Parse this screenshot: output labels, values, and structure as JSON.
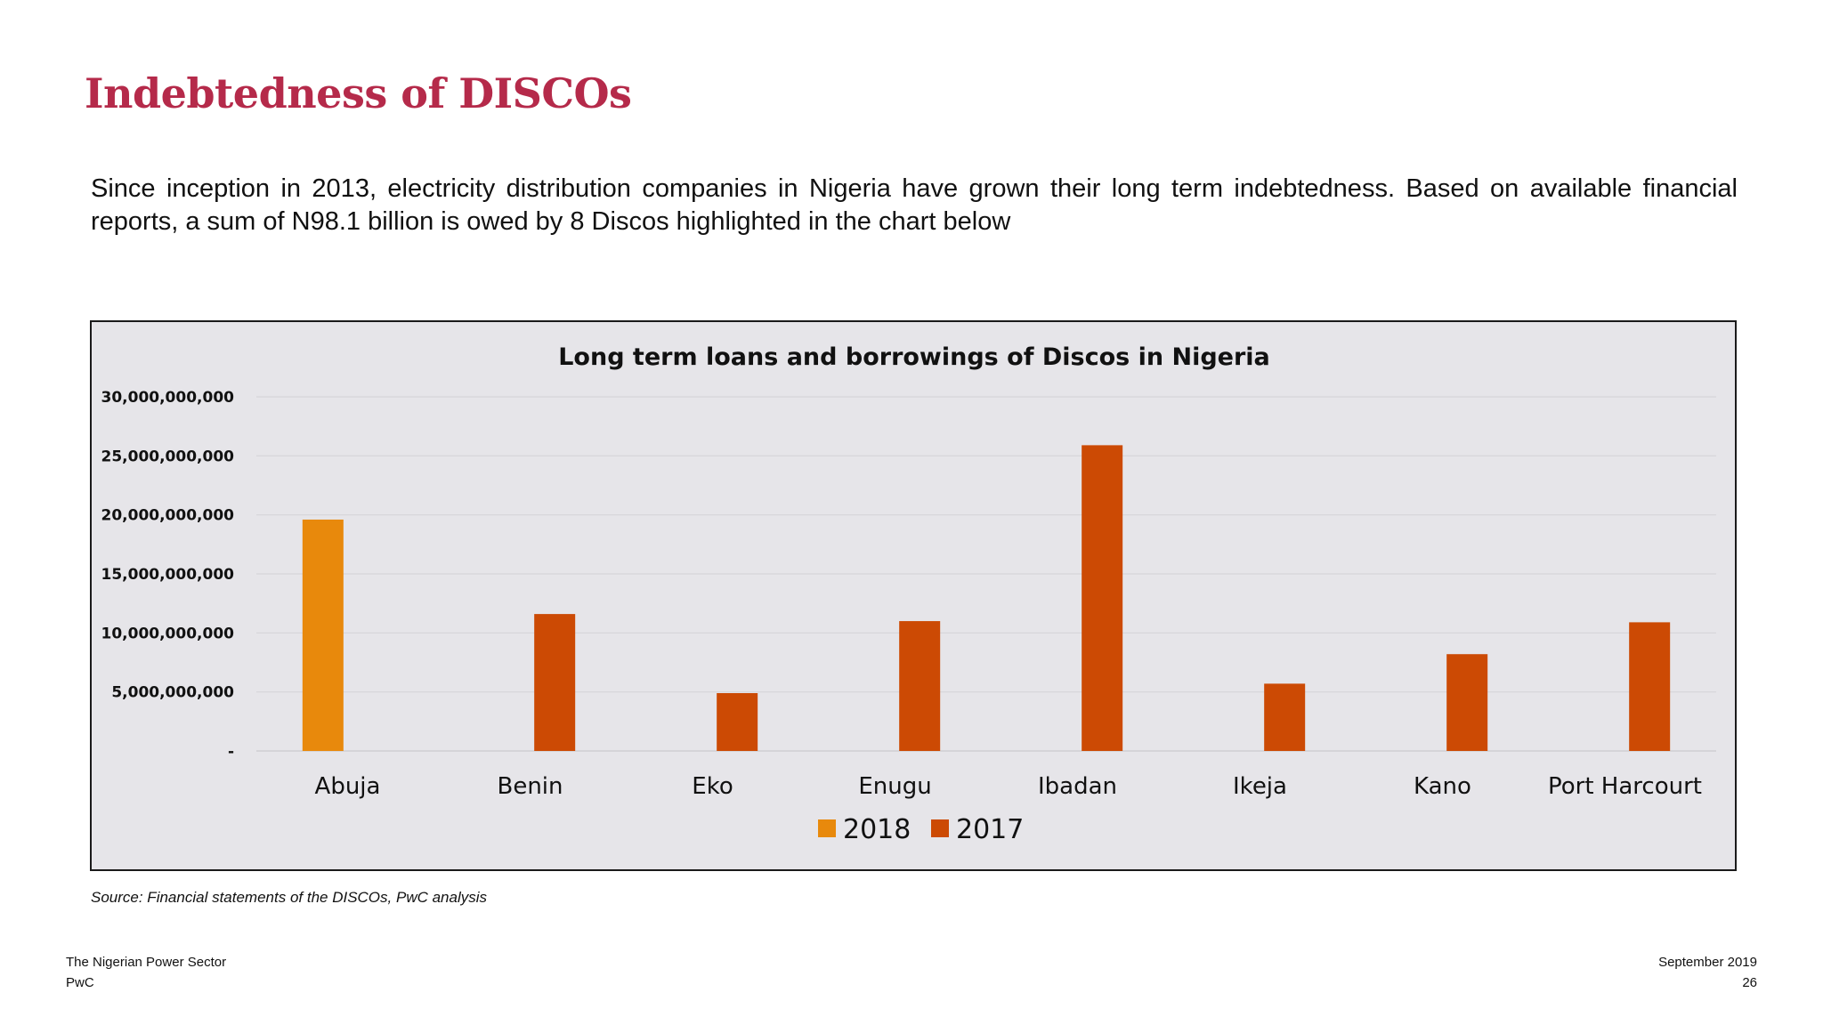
{
  "slide": {
    "title": "Indebtedness of DISCOs",
    "intro": "Since inception in 2013, electricity distribution companies in Nigeria have grown their long term indebtedness. Based on available financial reports, a sum of  N98.1 billion is owed by 8 Discos highlighted in the chart below",
    "source": "Source: Financial statements of the DISCOs, PwC analysis"
  },
  "footer": {
    "left_line1": "The Nigerian Power Sector",
    "left_line2": "PwC",
    "right_line1": "September 2019",
    "right_line2": "26"
  },
  "chart_data": {
    "type": "bar",
    "title": "Long term loans and borrowings of Discos in Nigeria",
    "xlabel": "",
    "ylabel": "",
    "categories": [
      "Abuja",
      "Benin",
      "Eko",
      "Enugu",
      "Ibadan",
      "Ikeja",
      "Kano",
      "Port Harcourt"
    ],
    "series": [
      {
        "name": "2018",
        "color": "#e8890c",
        "values": [
          19600000000,
          null,
          null,
          null,
          null,
          null,
          null,
          null
        ]
      },
      {
        "name": "2017",
        "color": "#cc4a04",
        "values": [
          null,
          11600000000,
          4900000000,
          11000000000,
          25900000000,
          5700000000,
          8200000000,
          10900000000
        ]
      }
    ],
    "ylim": [
      0,
      30000000000
    ],
    "yticks": [
      0,
      5000000000,
      10000000000,
      15000000000,
      20000000000,
      25000000000,
      30000000000
    ],
    "ytick_labels": [
      "-",
      "5,000,000,000",
      "10,000,000,000",
      "15,000,000,000",
      "20,000,000,000",
      "25,000,000,000",
      "30,000,000,000"
    ],
    "grid": true,
    "legend_position": "bottom"
  }
}
